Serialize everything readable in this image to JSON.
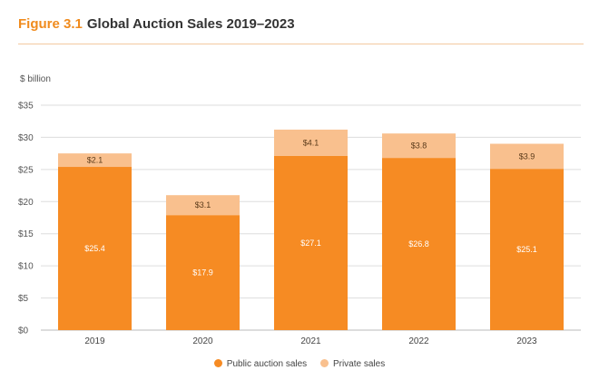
{
  "header": {
    "figure_label": "Figure 3.1",
    "title": "Global Auction Sales 2019–2023"
  },
  "colors": {
    "public": "#f68b23",
    "private": "#f9c08e",
    "accent": "#f08b1d",
    "grid": "#dddddd"
  },
  "chart_data": {
    "type": "bar",
    "stacked": true,
    "unit_label": "$ billion",
    "categories": [
      "2019",
      "2020",
      "2021",
      "2022",
      "2023"
    ],
    "series": [
      {
        "name": "Public auction sales",
        "values": [
          25.4,
          17.9,
          27.1,
          26.8,
          25.1
        ],
        "labels": [
          "$25.4",
          "$17.9",
          "$27.1",
          "$26.8",
          "$25.1"
        ]
      },
      {
        "name": "Private sales",
        "values": [
          2.1,
          3.1,
          4.1,
          3.8,
          3.9
        ],
        "labels": [
          "$2.1",
          "$3.1",
          "$4.1",
          "$3.8",
          "$3.9"
        ]
      }
    ],
    "ylim": [
      0,
      35
    ],
    "yticks": [
      0,
      5,
      10,
      15,
      20,
      25,
      30,
      35
    ],
    "ytick_labels": [
      "$0",
      "$5",
      "$10",
      "$15",
      "$20",
      "$25",
      "$30",
      "$35"
    ],
    "grid": true,
    "legend_position": "bottom-center"
  }
}
